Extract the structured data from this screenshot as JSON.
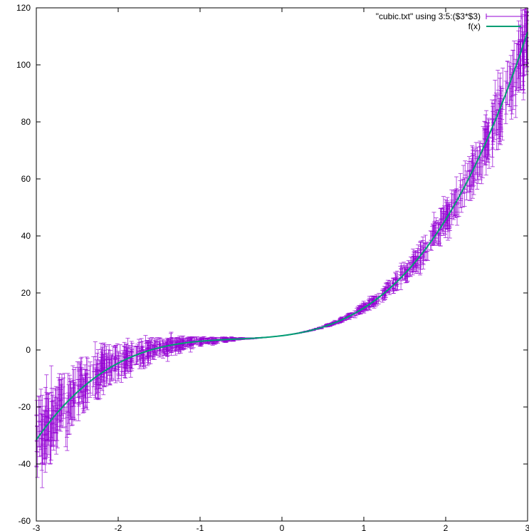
{
  "chart_data": {
    "type": "scatter",
    "title": "",
    "xlabel": "",
    "ylabel": "",
    "xlim": [
      -3,
      3
    ],
    "ylim": [
      -60,
      120
    ],
    "x_ticks": [
      "-3",
      "-2",
      "-1",
      "0",
      "1",
      "2",
      "3"
    ],
    "y_ticks": [
      "120",
      "100",
      "80",
      "60",
      "40",
      "20",
      "0",
      "-20",
      "-40",
      "-60"
    ],
    "grid": false,
    "legend_position": "top-right",
    "series": [
      {
        "name": "\"cubic.txt\" using 3:5:($3*$3)",
        "kind": "points-with-y-errorbars",
        "color": "#9400d3",
        "x_range": [
          -3,
          3
        ],
        "point_count": 1000,
        "error_model": "yerr = x^2",
        "sample_points": [
          {
            "x": -3,
            "y": -35
          },
          {
            "x": -2.5,
            "y": -18
          },
          {
            "x": -2,
            "y": -7
          },
          {
            "x": -1.5,
            "y": -1
          },
          {
            "x": -1,
            "y": 2
          },
          {
            "x": -0.5,
            "y": 3.6
          },
          {
            "x": 0,
            "y": 5
          },
          {
            "x": 0.5,
            "y": 8.5
          },
          {
            "x": 1,
            "y": 15
          },
          {
            "x": 1.5,
            "y": 24
          },
          {
            "x": 2,
            "y": 40
          },
          {
            "x": 2.5,
            "y": 65
          },
          {
            "x": 3,
            "y": 98
          }
        ]
      },
      {
        "name": "f(x)",
        "kind": "line",
        "color": "#009e73",
        "function": "f(x) = 2.25x^3 + 3.89x^2 + 3.59x + 5",
        "coefficients": {
          "a": 2.25,
          "b": 3.89,
          "c": 3.59,
          "d": 5
        }
      }
    ]
  }
}
